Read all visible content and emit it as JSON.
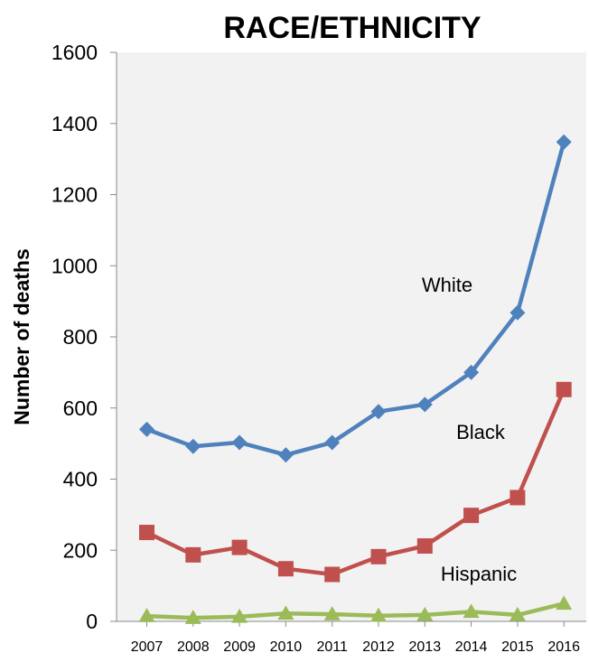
{
  "chart_data": {
    "type": "line",
    "title": "RACE/ETHNICITY",
    "xlabel": "",
    "ylabel": "Number of deaths",
    "categories": [
      "2007",
      "2008",
      "2009",
      "2010",
      "2011",
      "2012",
      "2013",
      "2014",
      "2015",
      "2016"
    ],
    "ylim": [
      0,
      1600
    ],
    "yticks": [
      0,
      200,
      400,
      600,
      800,
      1000,
      1200,
      1400,
      1600
    ],
    "grid": false,
    "legend": "inline labels",
    "series": [
      {
        "name": "White",
        "color": "#4F81BD",
        "marker": "diamond",
        "values": [
          540,
          492,
          503,
          468,
          503,
          590,
          610,
          700,
          868,
          1348
        ]
      },
      {
        "name": "Black",
        "color": "#C0504D",
        "marker": "square",
        "values": [
          250,
          187,
          208,
          148,
          132,
          182,
          212,
          298,
          348,
          652
        ]
      },
      {
        "name": "Hispanic",
        "color": "#9BBB59",
        "marker": "triangle",
        "values": [
          15,
          10,
          13,
          22,
          20,
          16,
          18,
          27,
          18,
          50
        ]
      }
    ]
  }
}
